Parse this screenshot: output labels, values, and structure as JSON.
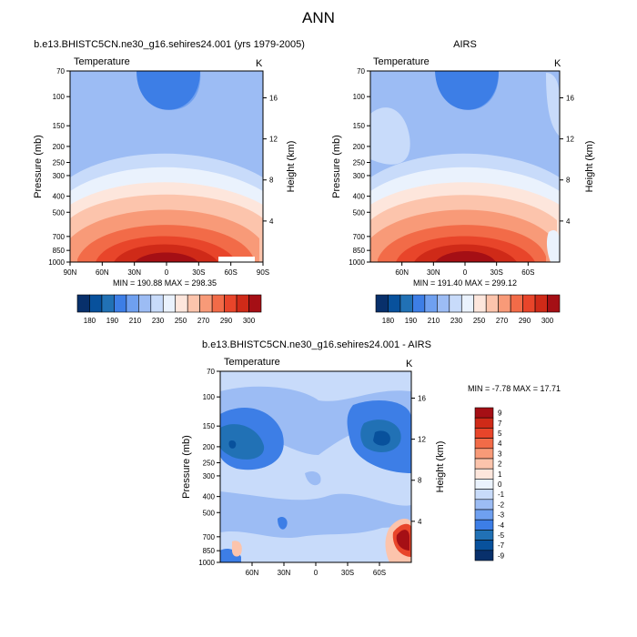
{
  "figure": {
    "title": "ANN"
  },
  "chart_data": [
    {
      "type": "contour",
      "title": "b.e13.BHISTC5CN.ne30_g16.sehires24.001 (yrs 1979-2005)",
      "subtitle_left": "Temperature",
      "subtitle_right": "K",
      "ylabel": "Pressure (mb)",
      "ylabel_right": "Height (km)",
      "x_ticks": [
        "90N",
        "60N",
        "30N",
        "0",
        "30S",
        "60S",
        "90S"
      ],
      "y_ticks": [
        "70",
        "100",
        "150",
        "200",
        "250",
        "300",
        "400",
        "500",
        "700",
        "850",
        "1000"
      ],
      "y_ticks_right": [
        "16",
        "12",
        "8",
        "4"
      ],
      "stats": "MIN = 190.88  MAX = 298.35",
      "min": 190.88,
      "max": 298.35
    },
    {
      "type": "contour",
      "title": "AIRS",
      "subtitle_left": "Temperature",
      "subtitle_right": "K",
      "ylabel": "Pressure (mb)",
      "ylabel_right": "Height (km)",
      "x_ticks": [
        "60N",
        "30N",
        "0",
        "30S",
        "60S"
      ],
      "y_ticks": [
        "70",
        "100",
        "150",
        "200",
        "250",
        "300",
        "400",
        "500",
        "700",
        "850",
        "1000"
      ],
      "y_ticks_right": [
        "16",
        "12",
        "8",
        "4"
      ],
      "stats": "MIN = 191.40  MAX = 299.12",
      "min": 191.4,
      "max": 299.12
    },
    {
      "type": "contour",
      "title": "b.e13.BHISTC5CN.ne30_g16.sehires24.001 - AIRS",
      "subtitle_left": "Temperature",
      "subtitle_right": "K",
      "ylabel": "Pressure (mb)",
      "ylabel_right": "Height (km)",
      "x_ticks": [
        "60N",
        "30N",
        "0",
        "30S",
        "60S"
      ],
      "y_ticks": [
        "70",
        "100",
        "150",
        "200",
        "250",
        "300",
        "400",
        "500",
        "700",
        "850",
        "1000"
      ],
      "y_ticks_right": [
        "16",
        "12",
        "8",
        "4"
      ],
      "stats": "MIN = -7.78  MAX = 17.71",
      "min": -7.78,
      "max": 17.71
    }
  ],
  "colorbars": {
    "temperature": {
      "labels": [
        "180",
        "190",
        "210",
        "230",
        "250",
        "270",
        "290",
        "300"
      ],
      "colors": [
        "#08306b",
        "#08519c",
        "#2171b5",
        "#3d7ee6",
        "#6fa0f0",
        "#9cbcf4",
        "#c8dbfa",
        "#eaf2fd",
        "#fde6dc",
        "#fcc4ac",
        "#f89a78",
        "#f26b48",
        "#e8452a",
        "#cf2a18",
        "#a50f15"
      ]
    },
    "difference": {
      "labels": [
        "9",
        "7",
        "5",
        "4",
        "3",
        "2",
        "1",
        "0",
        "-1",
        "-2",
        "-3",
        "-4",
        "-5",
        "-7",
        "-9"
      ],
      "colors": [
        "#a50f15",
        "#cf2a18",
        "#e8452a",
        "#f26b48",
        "#f89a78",
        "#fcc4ac",
        "#fde6dc",
        "#eaf2fd",
        "#c8dbfa",
        "#9cbcf4",
        "#6fa0f0",
        "#3d7ee6",
        "#2171b5",
        "#08519c",
        "#08306b"
      ]
    }
  }
}
